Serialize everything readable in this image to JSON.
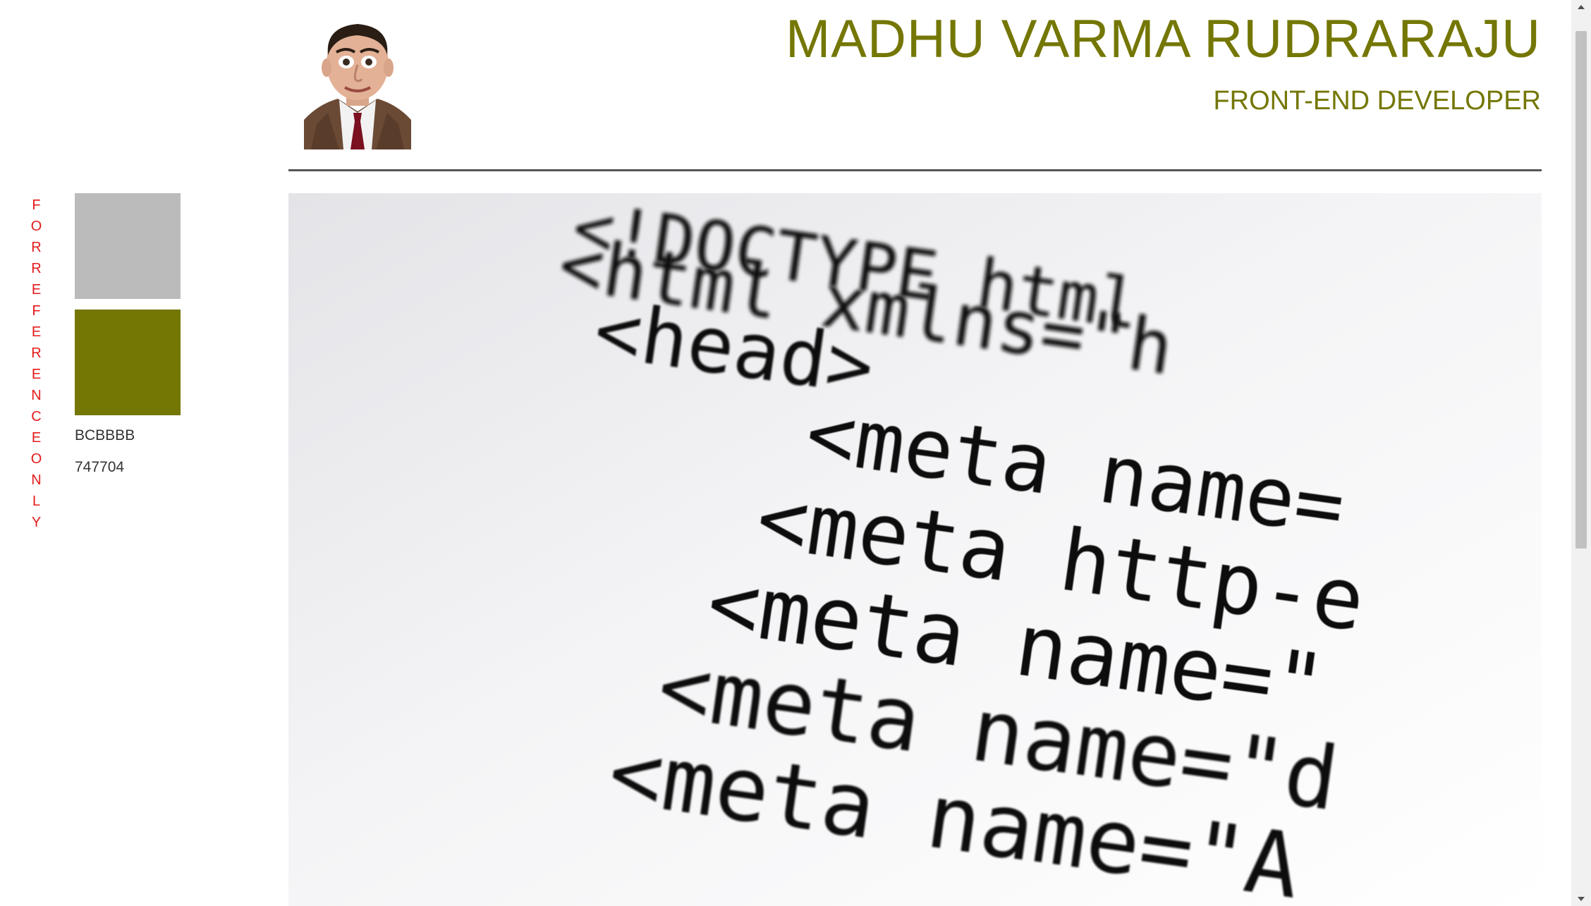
{
  "header": {
    "name": "MADHU VARMA RUDRARAJU",
    "role": "FRONT-END DEVELOPER"
  },
  "sidebar": {
    "reference_text": [
      "F",
      "O",
      "R",
      "R",
      "E",
      "F",
      "E",
      "R",
      "E",
      "N",
      "C",
      "E",
      "O",
      "N",
      "L",
      "Y"
    ],
    "swatches": [
      {
        "label": "BCBBBB",
        "color": "#bcbbbb"
      },
      {
        "label": "747704",
        "color": "#747704"
      }
    ]
  },
  "hero": {
    "code_lines": [
      "<!DOCTYPE html",
      "<html xmlns=\"h",
      "<head>",
      "<meta name=",
      "<meta http-e",
      "<meta name=\"",
      "<meta name=\"d",
      "<meta name=\"A"
    ]
  },
  "colors": {
    "accent": "#747704",
    "reference_red": "#e41b1b",
    "divider": "#555555"
  },
  "icons": {
    "scroll_up": "triangle-up-icon",
    "scroll_down": "triangle-down-icon"
  }
}
